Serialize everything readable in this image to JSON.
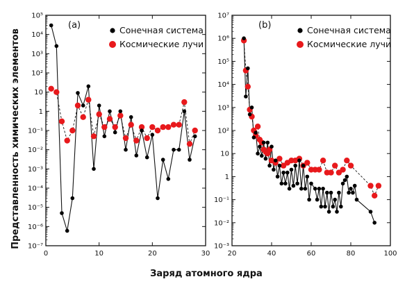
{
  "chart_data": [
    {
      "type": "line",
      "panel_label": "(a)",
      "xlim": [
        0,
        30
      ],
      "ylim_log10": [
        -7,
        5
      ],
      "y_scale": "log",
      "x_tick_labels": [
        "0",
        "10",
        "20",
        "30"
      ],
      "y_tick_labels": [
        "10⁵",
        "10⁴",
        "10³",
        "10²",
        "10",
        "1",
        "10⁻¹",
        "10⁻²",
        "10⁻³",
        "10⁻⁴",
        "10⁻⁵",
        "10⁻⁶",
        "10⁻⁷"
      ],
      "legend_placement": "top-right",
      "series": [
        {
          "name": "Сонечная система",
          "color": "#000000",
          "line_style": "solid",
          "marker": "filled-circle",
          "x": [
            1,
            2,
            3,
            4,
            5,
            6,
            7,
            8,
            9,
            10,
            11,
            12,
            13,
            14,
            15,
            16,
            17,
            18,
            19,
            20,
            21,
            22,
            23,
            24,
            25,
            26,
            27,
            28
          ],
          "y": [
            30000,
            2500,
            5e-06,
            6e-07,
            3e-05,
            9,
            2,
            20,
            0.001,
            2,
            0.05,
            1,
            0.08,
            1,
            0.01,
            0.5,
            0.005,
            0.1,
            0.004,
            0.06,
            3e-05,
            0.003,
            0.0003,
            0.01,
            0.01,
            1,
            0.003,
            0.05
          ]
        },
        {
          "name": "Космические лучи",
          "color": "#e8191c",
          "line_style": "dashed",
          "marker": "filled-circle",
          "x": [
            1,
            2,
            3,
            4,
            5,
            6,
            7,
            8,
            9,
            10,
            11,
            12,
            13,
            14,
            15,
            16,
            17,
            18,
            19,
            20,
            21,
            22,
            23,
            24,
            25,
            26,
            27,
            28
          ],
          "y": [
            15,
            10,
            0.3,
            0.03,
            0.1,
            2,
            0.5,
            4,
            0.05,
            0.7,
            0.15,
            0.4,
            0.15,
            0.6,
            0.04,
            0.2,
            0.03,
            0.15,
            0.04,
            0.15,
            0.1,
            0.15,
            0.15,
            0.2,
            0.2,
            3,
            0.02,
            0.1
          ]
        }
      ]
    },
    {
      "type": "line",
      "panel_label": "(b)",
      "xlim": [
        20,
        100
      ],
      "ylim_log10": [
        -3,
        7
      ],
      "y_scale": "log",
      "x_tick_labels": [
        "20",
        "40",
        "60",
        "80",
        "100"
      ],
      "y_tick_labels": [
        "10⁷",
        "10⁶",
        "10⁵",
        "10⁴",
        "10³",
        "10²",
        "10",
        "1",
        "10⁻¹",
        "10⁻²",
        "10⁻³"
      ],
      "legend_placement": "top-right",
      "series": [
        {
          "name": "Сонечная система",
          "color": "#000000",
          "line_style": "solid",
          "marker": "filled-circle",
          "x": [
            26,
            27,
            28,
            29,
            30,
            31,
            32,
            33,
            34,
            35,
            36,
            37,
            38,
            39,
            40,
            41,
            42,
            43,
            44,
            45,
            46,
            47,
            48,
            49,
            50,
            51,
            52,
            53,
            54,
            55,
            56,
            57,
            58,
            59,
            60,
            62,
            63,
            64,
            65,
            66,
            67,
            68,
            69,
            70,
            71,
            72,
            73,
            74,
            75,
            76,
            77,
            78,
            79,
            80,
            81,
            82,
            83,
            90,
            92
          ],
          "y": [
            1000000,
            3000,
            50000,
            500,
            1000,
            50,
            80,
            10,
            20,
            8,
            30,
            6,
            30,
            3,
            20,
            2,
            5,
            1,
            3,
            0.5,
            1.5,
            0.5,
            1.5,
            0.3,
            2,
            0.4,
            3,
            0.5,
            5,
            0.3,
            3,
            0.3,
            1,
            0.1,
            0.5,
            0.3,
            0.1,
            0.3,
            0.05,
            0.3,
            0.05,
            0.2,
            0.03,
            0.2,
            0.05,
            0.1,
            0.03,
            0.2,
            0.05,
            0.5,
            0.7,
            1,
            0.2,
            0.3,
            0.2,
            0.4,
            0.1,
            0.03,
            0.01
          ]
        },
        {
          "name": "Космические лучи",
          "color": "#e8191c",
          "line_style": "dashed",
          "marker": "filled-circle",
          "x": [
            26,
            27,
            28,
            29,
            30,
            31,
            32,
            33,
            34,
            35,
            36,
            37,
            38,
            39,
            40,
            42,
            44,
            46,
            48,
            50,
            52,
            54,
            56,
            58,
            60,
            62,
            64,
            66,
            68,
            70,
            72,
            74,
            76,
            78,
            80,
            90,
            92,
            94
          ],
          "y": [
            800000,
            40000,
            8000,
            800,
            400,
            100,
            60,
            150,
            40,
            30,
            15,
            12,
            10,
            15,
            5,
            4,
            6,
            3,
            4,
            5,
            5,
            6,
            3,
            4,
            2,
            2,
            2,
            5,
            1.5,
            1.5,
            3,
            1.5,
            2,
            5,
            3,
            0.4,
            0.15,
            0.4
          ]
        }
      ]
    }
  ],
  "legend_a": {
    "label_solar": "Сонечная система",
    "label_cosmic": "Космические лучи"
  },
  "legend_b": {
    "label_solar": "Сонечная система",
    "label_cosmic": "Космические лучи"
  },
  "panel_a_label": "(a)",
  "panel_b_label": "(b)",
  "x_axis_title": "Заряд атомного ядра",
  "y_axis_title": "Представленность химических элементов",
  "colors": {
    "solar": "#000000",
    "cosmic": "#e8191c"
  }
}
